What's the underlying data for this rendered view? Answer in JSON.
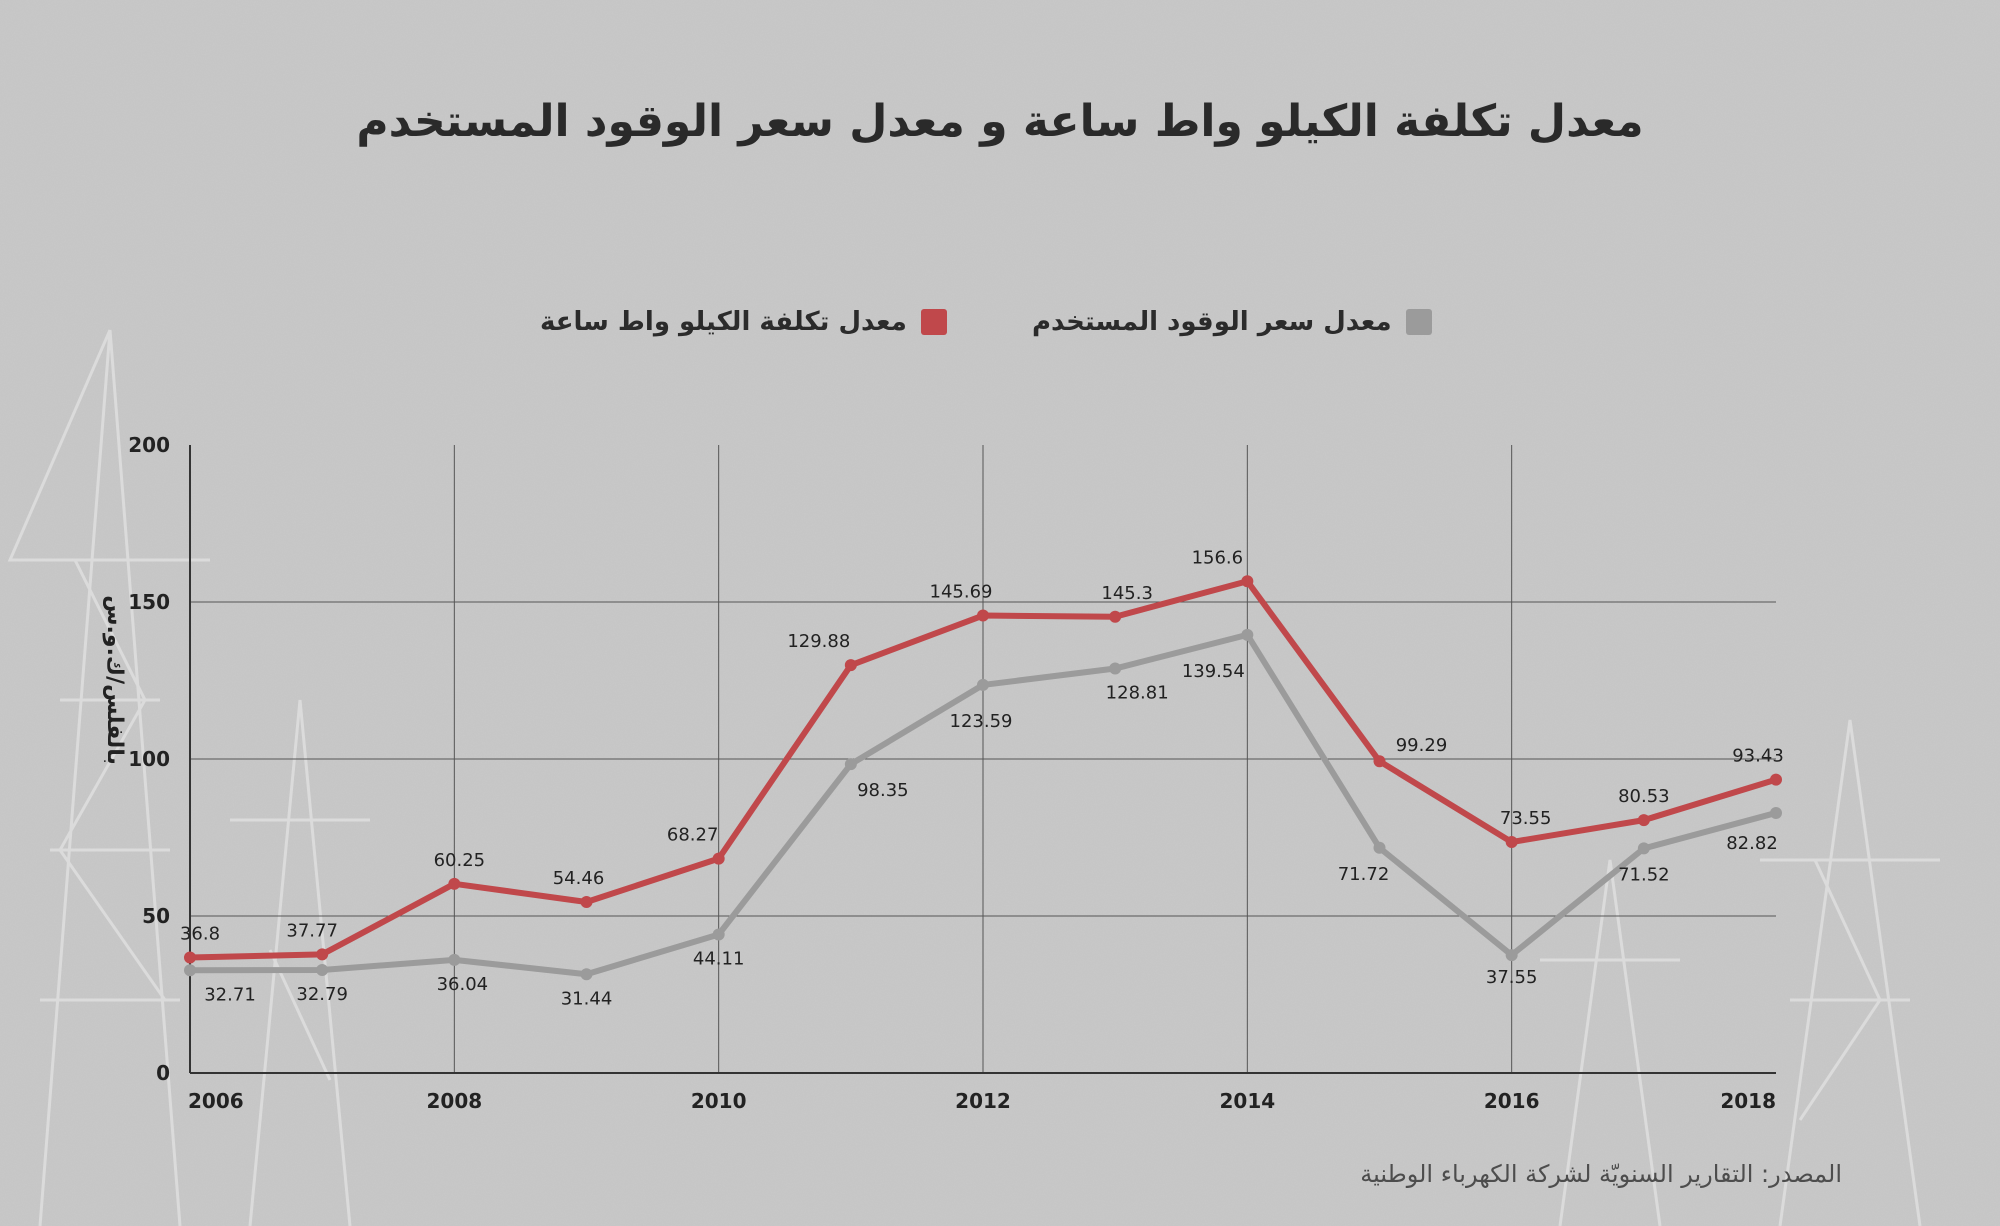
{
  "title": "معدل تكلفة الكيلو واط ساعة و معدل سعر الوقود المستخدم",
  "source": "المصدر: التقارير السنويّة لشركة الكهرباء الوطنية",
  "colors": {
    "cost": "#c0484b",
    "fuel": "#9b9b9b",
    "background": "#c9c9c9",
    "grid": "#555555"
  },
  "legend": [
    {
      "label": "معدل تكلفة الكيلو واط ساعة",
      "color": "#c0484b"
    },
    {
      "label": "معدل سعر الوقود المستخدم",
      "color": "#9b9b9b"
    }
  ],
  "chart_data": {
    "type": "line",
    "title": "معدل تكلفة الكيلو واط ساعة و معدل سعر الوقود المستخدم",
    "ylabel": "بالفلس/ك.و.س",
    "xlabel": "",
    "x": [
      2006,
      2007,
      2008,
      2009,
      2010,
      2011,
      2012,
      2013,
      2014,
      2015,
      2016,
      2017,
      2018
    ],
    "x_ticks": [
      "2006",
      "2008",
      "2010",
      "2012",
      "2014",
      "2016",
      "2018"
    ],
    "y_ticks": [
      "0",
      "50",
      "100",
      "150",
      "200"
    ],
    "ylim": [
      0,
      200
    ],
    "grid": true,
    "legend_position": "top",
    "series": [
      {
        "name": "معدل تكلفة الكيلو واط ساعة",
        "color": "#c0484b",
        "values": [
          36.8,
          37.77,
          60.25,
          54.46,
          68.27,
          129.88,
          145.69,
          145.3,
          156.6,
          99.29,
          73.55,
          80.53,
          93.43
        ]
      },
      {
        "name": "معدل سعر الوقود المستخدم",
        "color": "#9b9b9b",
        "values": [
          32.71,
          32.79,
          36.04,
          31.44,
          44.11,
          98.35,
          123.59,
          128.81,
          139.54,
          71.72,
          37.55,
          71.52,
          82.82
        ]
      }
    ]
  }
}
